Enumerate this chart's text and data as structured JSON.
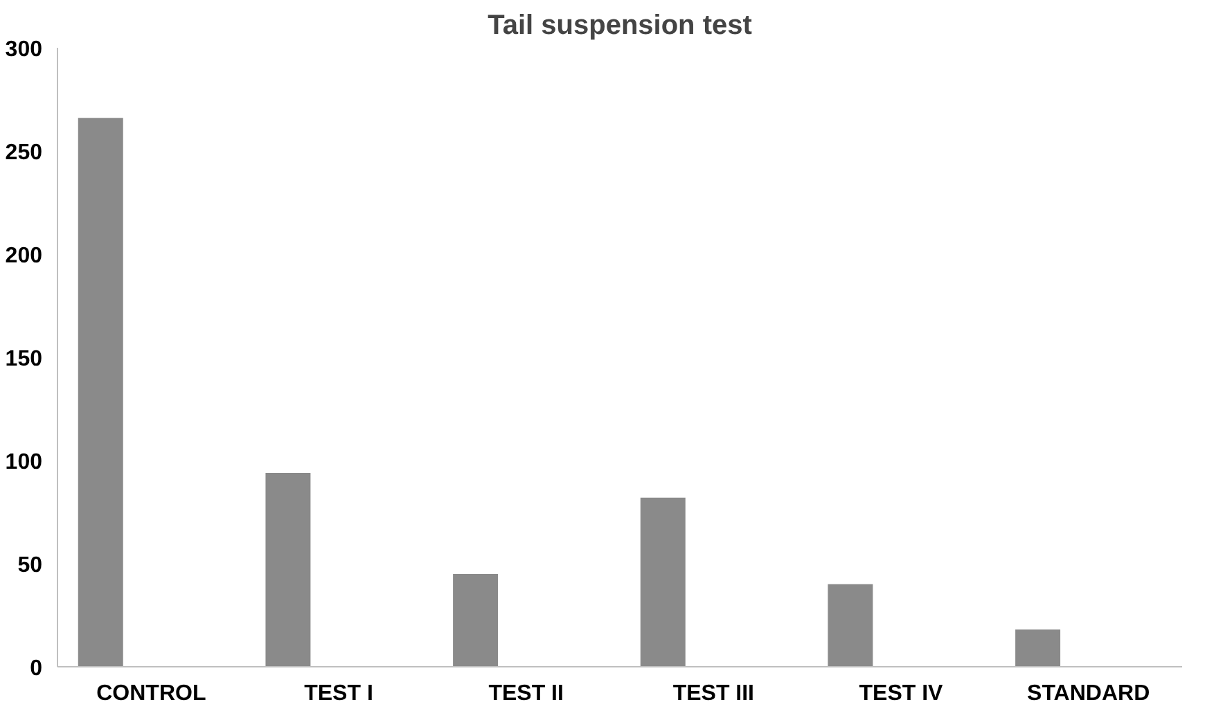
{
  "chart_data": {
    "type": "bar",
    "title": "Tail suspension test",
    "categories": [
      "CONTROL",
      "TEST I",
      "TEST II",
      "TEST III",
      "TEST IV",
      "STANDARD"
    ],
    "values": [
      266,
      94,
      45,
      82,
      40,
      18
    ],
    "color": "#8a8a8a",
    "ylim": [
      0,
      300
    ],
    "yticks": [
      0,
      50,
      100,
      150,
      200,
      250,
      300
    ],
    "grid": false
  }
}
